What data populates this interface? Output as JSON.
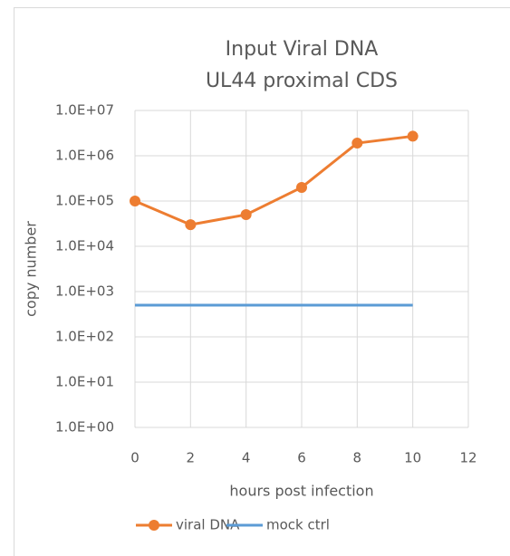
{
  "chart_data": {
    "type": "line",
    "title": [
      "Input Viral DNA",
      "UL44 proximal CDS"
    ],
    "xlabel": "hours post infection",
    "ylabel": "copy number",
    "x": [
      0,
      2,
      4,
      6,
      8,
      10
    ],
    "series": [
      {
        "name": "viral DNA",
        "color": "#ed7d31",
        "marker": true,
        "values": [
          100000,
          30000,
          50000,
          200000,
          1900000,
          2700000
        ]
      },
      {
        "name": "mock ctrl",
        "color": "#5b9bd5",
        "marker": false,
        "values": [
          500,
          500,
          500,
          500,
          500,
          500
        ]
      }
    ],
    "xlim": [
      0,
      12
    ],
    "xticks": [
      0,
      2,
      4,
      6,
      8,
      10,
      12
    ],
    "ylim": [
      1,
      10000000
    ],
    "yscale": "log",
    "yticks": [
      {
        "value": 1,
        "label": "1.0E+00"
      },
      {
        "value": 10,
        "label": "1.0E+01"
      },
      {
        "value": 100,
        "label": "1.0E+02"
      },
      {
        "value": 1000,
        "label": "1.0E+03"
      },
      {
        "value": 10000,
        "label": "1.0E+04"
      },
      {
        "value": 100000,
        "label": "1.0E+05"
      },
      {
        "value": 1000000,
        "label": "1.0E+06"
      },
      {
        "value": 10000000,
        "label": "1.0E+07"
      }
    ],
    "grid": true,
    "legend": "bottom"
  }
}
